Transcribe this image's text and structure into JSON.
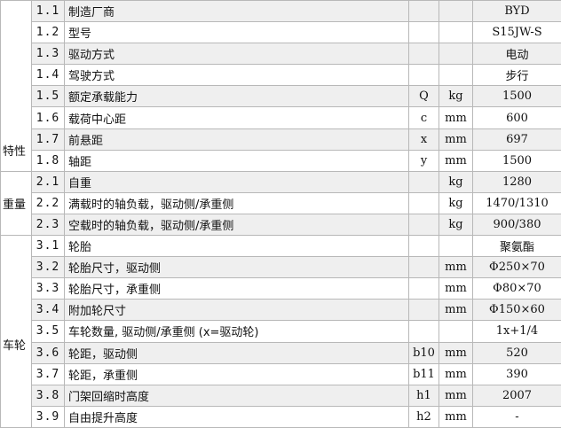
{
  "groups": [
    {
      "category": "特性",
      "rows": [
        {
          "no": "1.1",
          "desc": "制造厂商",
          "sym": "",
          "unit": "",
          "val": "BYD"
        },
        {
          "no": "1.2",
          "desc": "型号",
          "sym": "",
          "unit": "",
          "val": "S15JW-S"
        },
        {
          "no": "1.3",
          "desc": "驱动方式",
          "sym": "",
          "unit": "",
          "val": "电动"
        },
        {
          "no": "1.4",
          "desc": "驾驶方式",
          "sym": "",
          "unit": "",
          "val": "步行"
        },
        {
          "no": "1.5",
          "desc": "额定承载能力",
          "sym": "Q",
          "unit": "kg",
          "val": "1500"
        },
        {
          "no": "1.6",
          "desc": "载荷中心距",
          "sym": "c",
          "unit": "mm",
          "val": "600"
        },
        {
          "no": "1.7",
          "desc": "前悬距",
          "sym": "x",
          "unit": "mm",
          "val": "697"
        },
        {
          "no": "1.8",
          "desc": "轴距",
          "sym": "y",
          "unit": "mm",
          "val": "1500"
        }
      ]
    },
    {
      "category": "重量",
      "rows": [
        {
          "no": "2.1",
          "desc": "自重",
          "sym": "",
          "unit": "kg",
          "val": "1280"
        },
        {
          "no": "2.2",
          "desc": "满载时的轴负载，驱动侧/承重侧",
          "sym": "",
          "unit": "kg",
          "val": "1470/1310"
        },
        {
          "no": "2.3",
          "desc": "空载时的轴负载，驱动侧/承重侧",
          "sym": "",
          "unit": "kg",
          "val": "900/380"
        }
      ]
    },
    {
      "category": "车轮",
      "rows": [
        {
          "no": "3.1",
          "desc": "轮胎",
          "sym": "",
          "unit": "",
          "val": "聚氨酯"
        },
        {
          "no": "3.2",
          "desc": "轮胎尺寸，驱动侧",
          "sym": "",
          "unit": "mm",
          "val": "Φ250×70"
        },
        {
          "no": "3.3",
          "desc": "轮胎尺寸，承重侧",
          "sym": "",
          "unit": "mm",
          "val": "Φ80×70"
        },
        {
          "no": "3.4",
          "desc": "附加轮尺寸",
          "sym": "",
          "unit": "mm",
          "val": "Φ150×60"
        },
        {
          "no": "3.5",
          "desc": "车轮数量, 驱动侧/承重侧 (x=驱动轮)",
          "sym": "",
          "unit": "",
          "val": "1x+1/4"
        },
        {
          "no": "3.6",
          "desc": "轮距，驱动侧",
          "sym": "b10",
          "unit": "mm",
          "val": "520"
        },
        {
          "no": "3.7",
          "desc": "轮距，承重侧",
          "sym": "b11",
          "unit": "mm",
          "val": "390"
        },
        {
          "no": "3.8",
          "desc": "门架回缩时高度",
          "sym": "h1",
          "unit": "mm",
          "val": "2007"
        },
        {
          "no": "3.9",
          "desc": "自由提升高度",
          "sym": "h2",
          "unit": "mm",
          "val": "-"
        }
      ]
    }
  ]
}
